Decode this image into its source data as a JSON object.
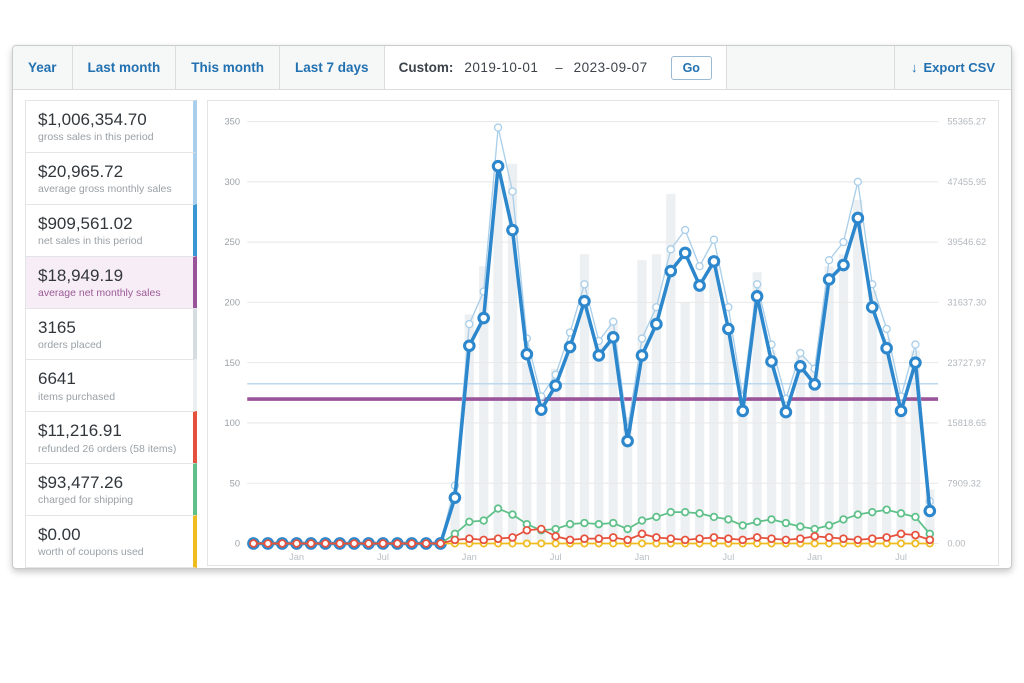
{
  "toolbar": {
    "tabs": [
      {
        "id": "year",
        "label": "Year"
      },
      {
        "id": "last-month",
        "label": "Last month"
      },
      {
        "id": "this-month",
        "label": "This month"
      },
      {
        "id": "last-7-days",
        "label": "Last 7 days"
      }
    ],
    "custom_label": "Custom:",
    "date_from": "2019-10-01",
    "date_separator": "–",
    "date_to": "2023-09-07",
    "go_label": "Go",
    "export_icon": "↓",
    "export_label": "Export CSV"
  },
  "sidebar": {
    "stats": [
      {
        "value": "$1,006,354.70",
        "label": "gross sales in this period",
        "accent": "#aacfec",
        "highlighted": false
      },
      {
        "value": "$20,965.72",
        "label": "average gross monthly sales",
        "accent": "#aacfec",
        "highlighted": false
      },
      {
        "value": "$909,561.02",
        "label": "net sales in this period",
        "accent": "#3b97d3",
        "highlighted": false
      },
      {
        "value": "$18,949.19",
        "label": "average net monthly sales",
        "accent": "#9a549a",
        "highlighted": true
      },
      {
        "value": "3165",
        "label": "orders placed",
        "accent": "#d6dde0",
        "highlighted": false
      },
      {
        "value": "6641",
        "label": "items purchased",
        "accent": "#ebeff1",
        "highlighted": false
      },
      {
        "value": "$11,216.91",
        "label": "refunded 26 orders (58 items)",
        "accent": "#e6513e",
        "highlighted": false
      },
      {
        "value": "$93,477.26",
        "label": "charged for shipping",
        "accent": "#5fc08a",
        "highlighted": false
      },
      {
        "value": "$0.00",
        "label": "worth of coupons used",
        "accent": "#f0bb1f",
        "highlighted": false
      }
    ]
  },
  "chart_data": {
    "type": "line+bar",
    "months": [
      "2019-10",
      "2019-11",
      "2019-12",
      "2020-01",
      "2020-02",
      "2020-03",
      "2020-04",
      "2020-05",
      "2020-06",
      "2020-07",
      "2020-08",
      "2020-09",
      "2020-10",
      "2020-11",
      "2020-12",
      "2021-01",
      "2021-02",
      "2021-03",
      "2021-04",
      "2021-05",
      "2021-06",
      "2021-07",
      "2021-08",
      "2021-09",
      "2021-10",
      "2021-11",
      "2021-12",
      "2022-01",
      "2022-02",
      "2022-03",
      "2022-04",
      "2022-05",
      "2022-06",
      "2022-07",
      "2022-08",
      "2022-09",
      "2022-10",
      "2022-11",
      "2022-12",
      "2023-01",
      "2023-02",
      "2023-03",
      "2023-04",
      "2023-05",
      "2023-06",
      "2023-07",
      "2023-08",
      "2023-09"
    ],
    "x_tick_labels": [
      {
        "index": 3,
        "label": "Jan"
      },
      {
        "index": 9,
        "label": "Jul"
      },
      {
        "index": 15,
        "label": "Jan"
      },
      {
        "index": 21,
        "label": "Jul"
      },
      {
        "index": 27,
        "label": "Jan"
      },
      {
        "index": 33,
        "label": "Jul"
      },
      {
        "index": 39,
        "label": "Jan"
      },
      {
        "index": 45,
        "label": "Jul"
      }
    ],
    "left_axis": {
      "min": 0,
      "max": 350,
      "tick_step": 50
    },
    "right_axis_labels_top_to_bottom": [
      "55365.27",
      "47455.95",
      "39546.62",
      "31637.30",
      "23727.97",
      "15818.65",
      "7909.32",
      "0.00"
    ],
    "grid": true,
    "legend": "none",
    "reference_lines": [
      {
        "name": "average-gross-monthly-sales",
        "value": 132.5,
        "color": "#bcd9ef",
        "width": 1.5
      },
      {
        "name": "average-net-monthly-sales",
        "value": 119.8,
        "color": "#9a549a",
        "width": 3.5
      }
    ],
    "series": [
      {
        "name": "items-purchased",
        "type": "bar",
        "color": "#e2e7ea",
        "values": [
          0,
          0,
          0,
          0,
          0,
          0,
          0,
          0,
          0,
          0,
          0,
          0,
          0,
          0,
          40,
          190,
          230,
          300,
          315,
          150,
          120,
          145,
          160,
          240,
          165,
          185,
          105,
          235,
          240,
          290,
          200,
          215,
          235,
          180,
          120,
          225,
          160,
          115,
          155,
          145,
          230,
          240,
          285,
          210,
          170,
          120,
          160,
          45
        ]
      },
      {
        "name": "gross-sales",
        "type": "line",
        "color": "#abcfe9",
        "values": [
          0,
          0,
          0,
          0,
          0,
          0,
          0,
          0,
          0,
          0,
          0,
          0,
          0,
          0,
          48,
          182,
          209,
          345,
          292,
          170,
          122,
          140,
          175,
          215,
          168,
          184,
          95,
          170,
          196,
          244,
          260,
          230,
          252,
          196,
          122,
          215,
          165,
          120,
          158,
          145,
          235,
          250,
          300,
          215,
          178,
          122,
          165,
          35
        ]
      },
      {
        "name": "net-sales",
        "type": "line",
        "color": "#2d87cc",
        "values": [
          0,
          0,
          0,
          0,
          0,
          0,
          0,
          0,
          0,
          0,
          0,
          0,
          0,
          0,
          38,
          164,
          187,
          313,
          260,
          157,
          111,
          131,
          163,
          201,
          156,
          171,
          85,
          156,
          182,
          226,
          241,
          214,
          234,
          178,
          110,
          205,
          151,
          109,
          147,
          132,
          219,
          231,
          270,
          196,
          162,
          110,
          150,
          27
        ]
      },
      {
        "name": "shipping",
        "type": "line",
        "color": "#5fc08a",
        "values": [
          0,
          0,
          0,
          0,
          0,
          0,
          0,
          0,
          0,
          0,
          0,
          0,
          0,
          0,
          8,
          18,
          19,
          29,
          24,
          16,
          11,
          12,
          16,
          17,
          16,
          17,
          12,
          19,
          22,
          26,
          26,
          25,
          22,
          20,
          15,
          18,
          20,
          17,
          14,
          12,
          15,
          20,
          24,
          26,
          28,
          25,
          22,
          8
        ]
      },
      {
        "name": "coupons",
        "type": "line",
        "color": "#f0bb1f",
        "values": [
          0,
          0,
          0,
          0,
          0,
          0,
          0,
          0,
          0,
          0,
          0,
          0,
          0,
          0,
          0,
          0,
          0,
          0,
          0,
          0,
          0,
          0,
          0,
          0,
          0,
          0,
          0,
          0,
          0,
          0,
          0,
          0,
          0,
          0,
          0,
          0,
          0,
          0,
          0,
          0,
          0,
          0,
          0,
          0,
          0,
          0,
          0,
          0
        ]
      },
      {
        "name": "refunds",
        "type": "line",
        "color": "#e6513e",
        "values": [
          0,
          0,
          0,
          0,
          0,
          0,
          0,
          0,
          0,
          0,
          0,
          0,
          0,
          0,
          3,
          4,
          3,
          4,
          5,
          11,
          12,
          6,
          3,
          4,
          4,
          5,
          3,
          8,
          5,
          4,
          3,
          4,
          5,
          4,
          3,
          5,
          4,
          3,
          4,
          6,
          5,
          4,
          3,
          4,
          5,
          8,
          7,
          3
        ]
      }
    ]
  }
}
